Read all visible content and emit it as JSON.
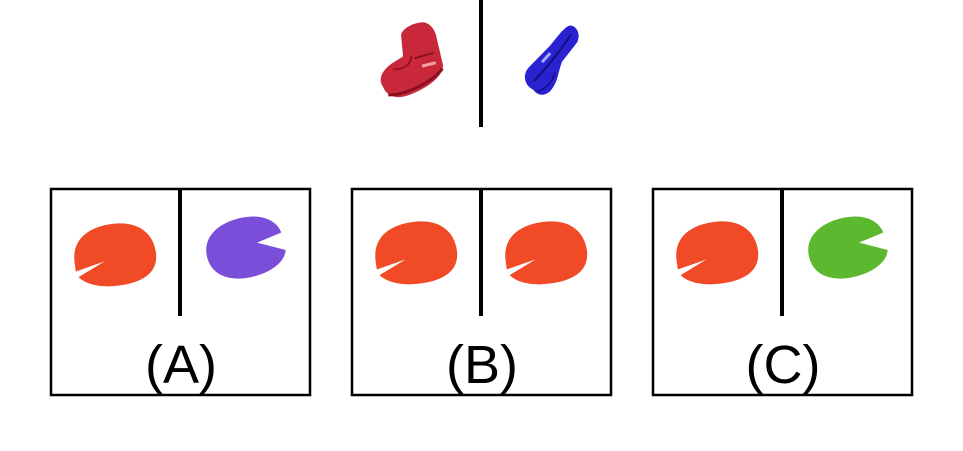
{
  "prompt": {
    "left_object": {
      "name": "high-top-sneaker",
      "color": "#c8283a",
      "outline": "#8a1020"
    },
    "right_object": {
      "name": "high-top-sneaker",
      "color": "#2a22d0",
      "outline": "#10107a"
    }
  },
  "options": [
    {
      "label": "(A)",
      "left_object": {
        "name": "notched-disc",
        "color": "#f04a26"
      },
      "right_object": {
        "name": "notched-disc",
        "color": "#7a4ed8"
      }
    },
    {
      "label": "(B)",
      "left_object": {
        "name": "notched-disc",
        "color": "#f04a26"
      },
      "right_object": {
        "name": "notched-disc",
        "color": "#f04a26"
      }
    },
    {
      "label": "(C)",
      "left_object": {
        "name": "notched-disc",
        "color": "#f04a26"
      },
      "right_object": {
        "name": "notched-disc",
        "color": "#5cb82e"
      }
    }
  ]
}
